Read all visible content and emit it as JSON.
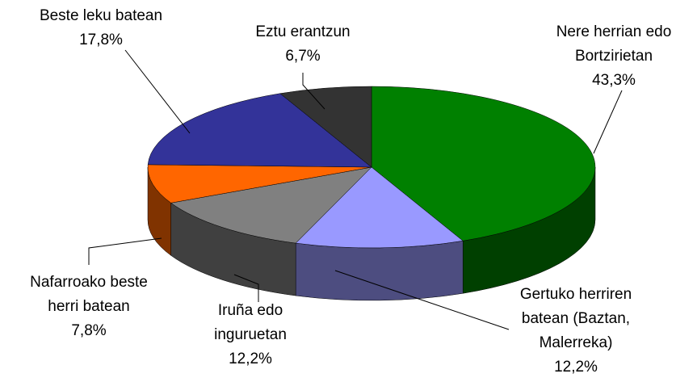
{
  "chart_data": {
    "type": "pie3d",
    "categories": [
      "Nere herrian edo\nBortzirietan",
      "Gertuko herriren\nbatean (Baztan,\nMalerreka)",
      "Iruña edo\ninguruetan",
      "Nafarroako beste\nherri batean",
      "Beste leku batean",
      "Eztu erantzun"
    ],
    "values": [
      43.3,
      12.2,
      12.2,
      7.8,
      17.8,
      6.7
    ],
    "value_labels": [
      "43,3%",
      "12,2%",
      "12,2%",
      "7,8%",
      "17,8%",
      "6,7%"
    ],
    "colors": [
      "#008000",
      "#9999ff",
      "#808080",
      "#ff6600",
      "#333399",
      "#333333"
    ]
  }
}
